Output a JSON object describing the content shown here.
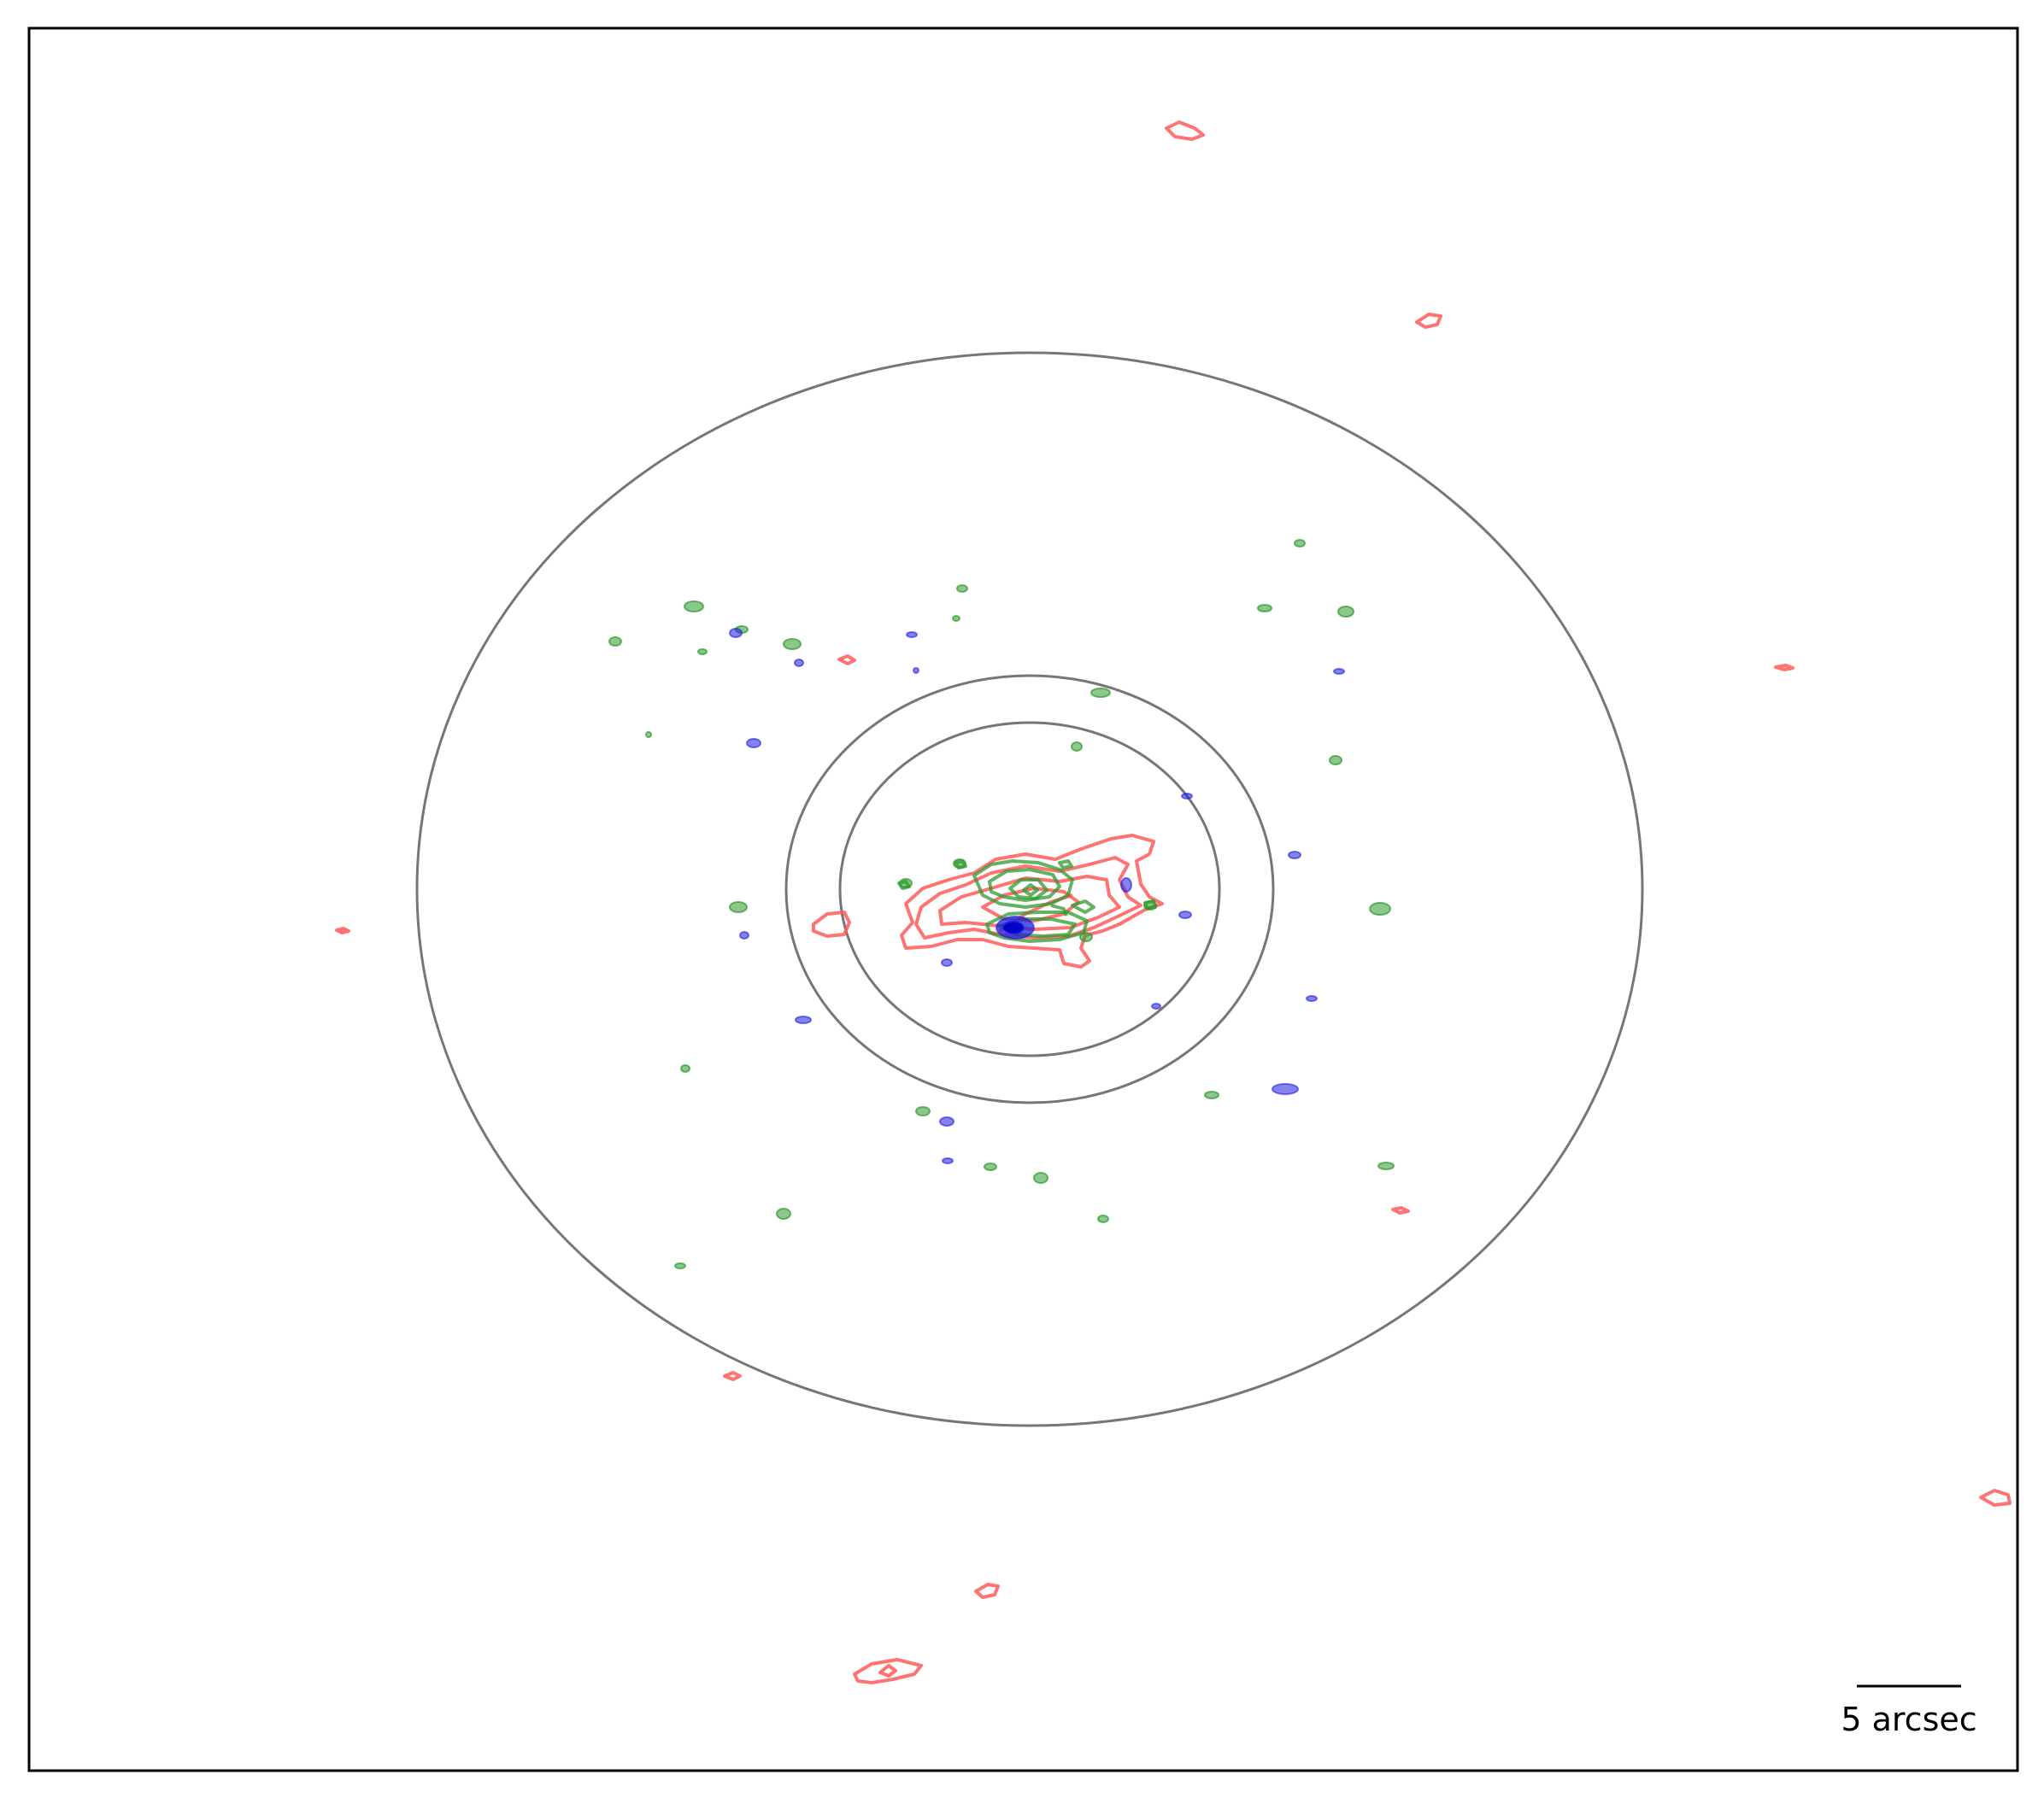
{
  "scale_bar": {
    "label": "5 arcsec"
  },
  "colors": {
    "frame": "#000000",
    "aperture": "#7a7479",
    "red_contours": "#ff5a5a",
    "green_contours": "#2e9a2e",
    "blue_contours": "#1f1fe0"
  }
}
